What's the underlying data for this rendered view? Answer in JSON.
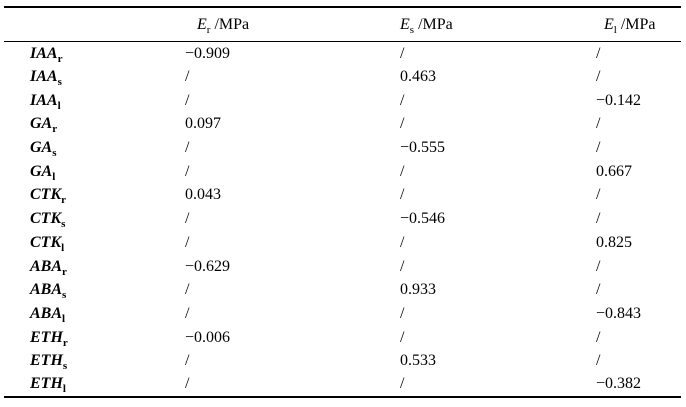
{
  "table": {
    "colors": {
      "text": "#000000",
      "rule": "#000000",
      "background": "#ffffff"
    },
    "header": {
      "cols": [
        {
          "base": "E",
          "sub": "r",
          "unit": " /MPa"
        },
        {
          "base": "E",
          "sub": "s",
          "unit": " /MPa"
        },
        {
          "base": "E",
          "sub": "l",
          "unit": " /MPa"
        }
      ]
    },
    "rows": [
      {
        "base": "IAA",
        "sub": "r",
        "values": [
          "−0.909",
          "/",
          "/"
        ]
      },
      {
        "base": "IAA",
        "sub": "s",
        "values": [
          "/",
          "0.463",
          "/"
        ]
      },
      {
        "base": "IAA",
        "sub": "l",
        "values": [
          "/",
          "/",
          "−0.142"
        ]
      },
      {
        "base": "GA",
        "sub": "r",
        "values": [
          "0.097",
          "/",
          "/"
        ]
      },
      {
        "base": "GA",
        "sub": "s",
        "values": [
          "/",
          "−0.555",
          "/"
        ]
      },
      {
        "base": "GA",
        "sub": "l",
        "values": [
          "/",
          "/",
          "0.667"
        ]
      },
      {
        "base": "CTK",
        "sub": "r",
        "values": [
          "0.043",
          "/",
          "/"
        ]
      },
      {
        "base": "CTK",
        "sub": "s",
        "values": [
          "/",
          "−0.546",
          "/"
        ]
      },
      {
        "base": "CTK",
        "sub": "l",
        "values": [
          "/",
          "/",
          "0.825"
        ]
      },
      {
        "base": "ABA",
        "sub": "r",
        "values": [
          "−0.629",
          "/",
          "/"
        ]
      },
      {
        "base": "ABA",
        "sub": "s",
        "values": [
          "/",
          "0.933",
          "/"
        ]
      },
      {
        "base": "ABA",
        "sub": "l",
        "values": [
          "/",
          "/",
          "−0.843"
        ]
      },
      {
        "base": "ETH",
        "sub": "r",
        "values": [
          "−0.006",
          "/",
          "/"
        ]
      },
      {
        "base": "ETH",
        "sub": "s",
        "values": [
          "/",
          "0.533",
          "/"
        ]
      },
      {
        "base": "ETH",
        "sub": "l",
        "values": [
          "/",
          "/",
          "−0.382"
        ]
      }
    ]
  },
  "chart_data": {
    "type": "table",
    "columns": [
      "",
      "Er /MPa",
      "Es /MPa",
      "El /MPa"
    ],
    "rows": [
      [
        "IAAr",
        -0.909,
        null,
        null
      ],
      [
        "IAAs",
        null,
        0.463,
        null
      ],
      [
        "IAAl",
        null,
        null,
        -0.142
      ],
      [
        "GAr",
        0.097,
        null,
        null
      ],
      [
        "GAs",
        null,
        -0.555,
        null
      ],
      [
        "GAl",
        null,
        null,
        0.667
      ],
      [
        "CTKr",
        0.043,
        null,
        null
      ],
      [
        "CTKs",
        null,
        -0.546,
        null
      ],
      [
        "CTKl",
        null,
        null,
        0.825
      ],
      [
        "ABAr",
        -0.629,
        null,
        null
      ],
      [
        "ABAs",
        null,
        0.933,
        null
      ],
      [
        "ABAl",
        null,
        null,
        -0.843
      ],
      [
        "ETHr",
        -0.006,
        null,
        null
      ],
      [
        "ETHs",
        null,
        0.533,
        null
      ],
      [
        "ETHl",
        null,
        null,
        -0.382
      ]
    ],
    "note": "null cells are shown as / in the rendered table"
  }
}
